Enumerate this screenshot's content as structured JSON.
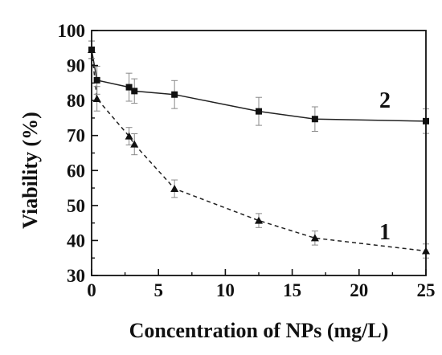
{
  "chart_data": {
    "type": "line",
    "xlabel": "Concentration of NPs (mg/L)",
    "ylabel": "Viability (%)",
    "xlim": [
      0,
      25
    ],
    "ylim": [
      30,
      100
    ],
    "xticks": [
      0,
      5,
      10,
      15,
      20,
      25
    ],
    "yticks": [
      30,
      40,
      50,
      60,
      70,
      80,
      90,
      100
    ],
    "grid": false,
    "legend": "none",
    "series": [
      {
        "name": "1",
        "marker": "triangle",
        "line_style": "dashed",
        "x": [
          0,
          0.4,
          2.8,
          3.2,
          6.2,
          12.5,
          16.7,
          25
        ],
        "y": [
          94.5,
          80.5,
          69.8,
          67.5,
          54.8,
          45.7,
          40.7,
          37.0
        ],
        "error": [
          2.5,
          3.5,
          2.5,
          3.0,
          2.5,
          2.0,
          2.0,
          2.0
        ]
      },
      {
        "name": "2",
        "marker": "square",
        "line_style": "solid",
        "x": [
          0,
          0.4,
          2.8,
          3.2,
          6.2,
          12.5,
          16.7,
          25
        ],
        "y": [
          94.5,
          85.8,
          83.8,
          82.7,
          81.7,
          76.9,
          74.7,
          74.1
        ],
        "error": [
          2.5,
          4.0,
          4.0,
          3.5,
          4.0,
          4.0,
          3.5,
          3.5
        ]
      }
    ]
  }
}
